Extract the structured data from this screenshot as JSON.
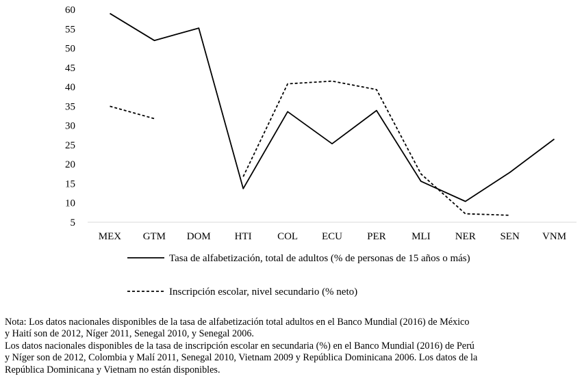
{
  "chart_data": {
    "type": "line",
    "categories": [
      "MEX",
      "GTM",
      "DOM",
      "HTI",
      "COL",
      "ECU",
      "PER",
      "MLI",
      "NER",
      "SEN",
      "VNM"
    ],
    "series": [
      {
        "name": "Tasa de alfabetización, total de adultos (% de personas de 15 años o más)",
        "style": "solid",
        "values": [
          59,
          52,
          55.2,
          13.7,
          33.6,
          25.3,
          33.9,
          15.6,
          10.4,
          17.9,
          26.5
        ]
      },
      {
        "name": "Inscripción escolar, nivel secundario (% neto)",
        "style": "dashed",
        "values": [
          35,
          31.8,
          null,
          16.8,
          40.8,
          41.5,
          39.3,
          17.5,
          7.2,
          6.8,
          null
        ]
      }
    ],
    "y_ticks": [
      "5",
      "10",
      "15",
      "20",
      "25",
      "30",
      "35",
      "40",
      "45",
      "50",
      "55",
      "60"
    ],
    "ylim": [
      5,
      60
    ],
    "grid": false,
    "legend_position": "bottom",
    "colors": {
      "line": "#000000",
      "axis": "#d9d9d9"
    }
  },
  "note": [
    "Nota: Los datos nacionales disponibles de la tasa de alfabetización total adultos en el Banco Mundial (2016) de México",
    "y Haití son de 2012, Níger 2011, Senegal 2010, y Senegal 2006.",
    "Los datos nacionales disponibles de la tasa de inscripción escolar en secundaria (%) en el Banco Mundial (2016) de Perú",
    "y Níger son de 2012, Colombia y Malí 2011, Senegal 2010, Vietnam 2009 y República Dominicana 2006. Los datos de la",
    "República Dominicana y Vietnam no están disponibles."
  ]
}
